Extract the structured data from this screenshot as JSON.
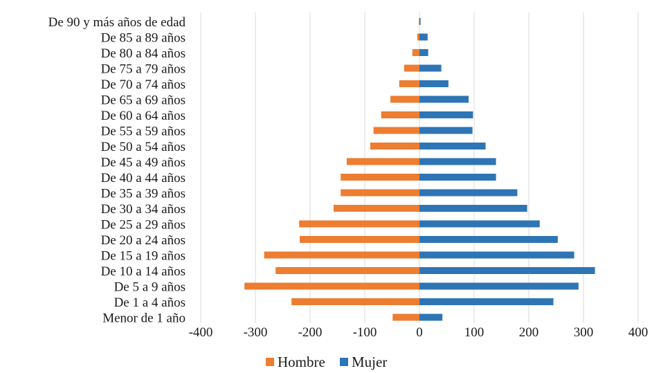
{
  "chart_data": {
    "type": "bar",
    "orientation": "horizontal",
    "title": "",
    "xlabel": "",
    "ylabel": "",
    "xlim": [
      -400,
      400
    ],
    "x_ticks": [
      -400,
      -300,
      -200,
      -100,
      0,
      100,
      200,
      300,
      400
    ],
    "grid": true,
    "legend_position": "bottom",
    "categories": [
      "De 90 y más años de edad",
      "De 85 a 89 años",
      "De 80 a 84 años",
      "De 75 a 79 años",
      "De 70 a 74 años",
      "De 65 a 69 años",
      "De 60 a 64 años",
      "De 55 a 59 años",
      "De 50 a 54 años",
      "De 45 a 49 años",
      "De 40 a 44 años",
      "De 35 a 39 años",
      "De 30 a 34 años",
      "De 25 a 29 años",
      "De 20 a 24 años",
      "De 15 a 19 años",
      "De 10 a 14 años",
      "De 5 a 9 años",
      "De 1 a 4 años",
      "Menor de 1 año"
    ],
    "series": [
      {
        "name": "Hombre",
        "color": "#ED7D31",
        "values": [
          -1,
          -4,
          -13,
          -28,
          -37,
          -53,
          -70,
          -84,
          -90,
          -133,
          -144,
          -144,
          -157,
          -220,
          -219,
          -284,
          -263,
          -320,
          -234,
          -49
        ]
      },
      {
        "name": "Mujer",
        "color": "#2E75B6",
        "values": [
          2,
          15,
          16,
          40,
          53,
          90,
          98,
          97,
          121,
          140,
          140,
          179,
          197,
          220,
          253,
          283,
          321,
          291,
          245,
          42
        ]
      }
    ]
  }
}
